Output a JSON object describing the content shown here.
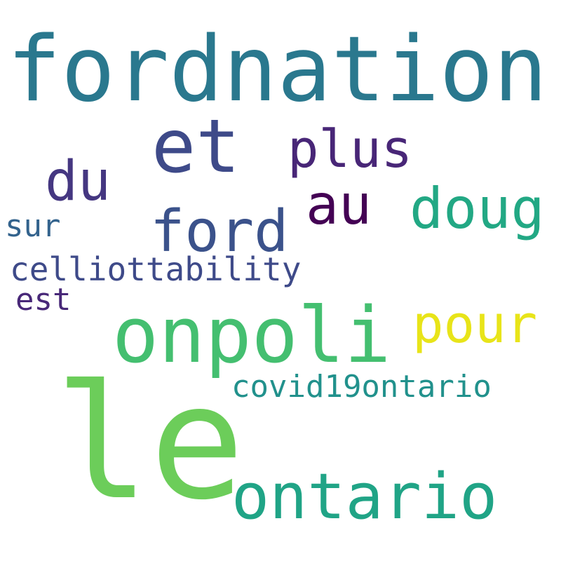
{
  "words": [
    {
      "id": "fordnation",
      "text": "fordnation",
      "color": "#2a788e"
    },
    {
      "id": "et",
      "text": "et",
      "color": "#3e4a89"
    },
    {
      "id": "plus",
      "text": "plus",
      "color": "#482677"
    },
    {
      "id": "du",
      "text": "du",
      "color": "#453781"
    },
    {
      "id": "au",
      "text": "au",
      "color": "#440154"
    },
    {
      "id": "doug",
      "text": "doug",
      "color": "#22a884"
    },
    {
      "id": "ford",
      "text": "ford",
      "color": "#3b528b"
    },
    {
      "id": "sur",
      "text": "sur",
      "color": "#33638d"
    },
    {
      "id": "celliottability",
      "text": "celliottability",
      "color": "#3e4a89"
    },
    {
      "id": "est",
      "text": "est",
      "color": "#482878"
    },
    {
      "id": "onpoli",
      "text": "onpoli",
      "color": "#44bf70"
    },
    {
      "id": "pour",
      "text": "pour",
      "color": "#e8e419"
    },
    {
      "id": "covid19ontario",
      "text": "covid19ontario",
      "color": "#21918c"
    },
    {
      "id": "le",
      "text": "le",
      "color": "#6ccd5a"
    },
    {
      "id": "ontario",
      "text": "ontario",
      "color": "#20a486"
    }
  ]
}
